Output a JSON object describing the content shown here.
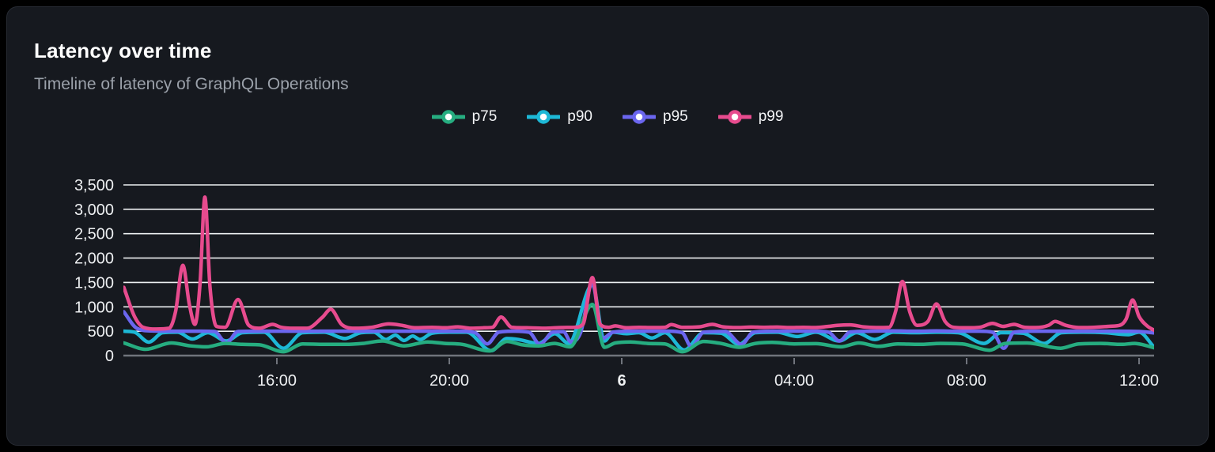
{
  "card": {
    "title": "Latency over time",
    "subtitle": "Timeline of latency of GraphQL Operations"
  },
  "theme": {
    "background": "#000000",
    "card_background": "#16191f",
    "card_border": "#272b33",
    "title_color": "#ffffff",
    "subtitle_color": "#9ba1aa",
    "grid_color": "#eceff1",
    "axis_color": "#70747c",
    "axis_text_color": "#eef0f2"
  },
  "chart_data": {
    "type": "line",
    "title": "Latency over time",
    "subtitle": "Timeline of latency of GraphQL Operations",
    "xlabel": "",
    "ylabel": "",
    "legend_position": "top-center",
    "grid": true,
    "x": {
      "unit": "hours-from-day5-midnight",
      "range": [
        12.45,
        36.35
      ],
      "ticks": [
        {
          "t": 16,
          "label": "16:00",
          "bold": false
        },
        {
          "t": 20,
          "label": "20:00",
          "bold": false
        },
        {
          "t": 24,
          "label": "6",
          "bold": true
        },
        {
          "t": 28,
          "label": "04:00",
          "bold": false
        },
        {
          "t": 32,
          "label": "08:00",
          "bold": false
        },
        {
          "t": 36,
          "label": "12:00",
          "bold": false
        }
      ]
    },
    "y": {
      "range": [
        0,
        3500
      ],
      "tick_step": 500,
      "ticks": [
        {
          "v": 0,
          "label": "0"
        },
        {
          "v": 500,
          "label": "500"
        },
        {
          "v": 1000,
          "label": "1,000"
        },
        {
          "v": 1500,
          "label": "1,500"
        },
        {
          "v": 2000,
          "label": "2,000"
        },
        {
          "v": 2500,
          "label": "2,500"
        },
        {
          "v": 3000,
          "label": "3,000"
        },
        {
          "v": 3500,
          "label": "3,500"
        }
      ]
    },
    "draw_order": [
      "p90",
      "p95",
      "p75",
      "p99"
    ],
    "series": [
      {
        "name": "p75",
        "color": "#26ad80",
        "points": [
          [
            12.45,
            260
          ],
          [
            12.96,
            130
          ],
          [
            13.55,
            260
          ],
          [
            14.0,
            200
          ],
          [
            14.37,
            180
          ],
          [
            14.8,
            250
          ],
          [
            15.2,
            230
          ],
          [
            15.6,
            220
          ],
          [
            16.15,
            80
          ],
          [
            16.6,
            240
          ],
          [
            17.1,
            230
          ],
          [
            17.6,
            230
          ],
          [
            18.0,
            250
          ],
          [
            18.45,
            300
          ],
          [
            18.95,
            200
          ],
          [
            19.5,
            280
          ],
          [
            19.9,
            250
          ],
          [
            20.3,
            230
          ],
          [
            20.93,
            95
          ],
          [
            21.34,
            290
          ],
          [
            21.7,
            220
          ],
          [
            22.07,
            200
          ],
          [
            22.44,
            250
          ],
          [
            22.8,
            180
          ],
          [
            23.32,
            1050
          ],
          [
            23.6,
            170
          ],
          [
            23.85,
            260
          ],
          [
            24.2,
            280
          ],
          [
            24.6,
            250
          ],
          [
            25.0,
            240
          ],
          [
            25.41,
            80
          ],
          [
            25.9,
            290
          ],
          [
            26.3,
            250
          ],
          [
            26.72,
            170
          ],
          [
            27.1,
            250
          ],
          [
            27.49,
            270
          ],
          [
            28.0,
            240
          ],
          [
            28.5,
            245
          ],
          [
            29.08,
            180
          ],
          [
            29.5,
            260
          ],
          [
            29.96,
            190
          ],
          [
            30.4,
            240
          ],
          [
            30.9,
            230
          ],
          [
            31.4,
            250
          ],
          [
            31.9,
            240
          ],
          [
            32.53,
            110
          ],
          [
            32.9,
            250
          ],
          [
            33.4,
            260
          ],
          [
            34.18,
            150
          ],
          [
            34.6,
            240
          ],
          [
            35.1,
            250
          ],
          [
            35.6,
            230
          ],
          [
            35.9,
            250
          ],
          [
            36.1,
            220
          ],
          [
            36.35,
            160
          ]
        ]
      },
      {
        "name": "p90",
        "color": "#1db8d6",
        "points": [
          [
            12.45,
            500
          ],
          [
            12.7,
            480
          ],
          [
            13.03,
            275
          ],
          [
            13.35,
            470
          ],
          [
            13.7,
            480
          ],
          [
            14.04,
            340
          ],
          [
            14.4,
            470
          ],
          [
            14.83,
            300
          ],
          [
            15.2,
            470
          ],
          [
            15.7,
            480
          ],
          [
            16.15,
            150
          ],
          [
            16.6,
            470
          ],
          [
            17.1,
            480
          ],
          [
            17.58,
            350
          ],
          [
            17.95,
            470
          ],
          [
            18.25,
            480
          ],
          [
            18.53,
            330
          ],
          [
            18.75,
            420
          ],
          [
            18.95,
            310
          ],
          [
            19.15,
            400
          ],
          [
            19.32,
            330
          ],
          [
            19.6,
            460
          ],
          [
            20.0,
            480
          ],
          [
            20.4,
            480
          ],
          [
            20.97,
            100
          ],
          [
            21.34,
            350
          ],
          [
            21.6,
            330
          ],
          [
            22.07,
            250
          ],
          [
            22.45,
            450
          ],
          [
            22.77,
            250
          ],
          [
            23.32,
            1450
          ],
          [
            23.6,
            300
          ],
          [
            23.8,
            480
          ],
          [
            24.1,
            450
          ],
          [
            24.4,
            470
          ],
          [
            24.7,
            360
          ],
          [
            25.0,
            470
          ],
          [
            25.45,
            115
          ],
          [
            25.9,
            470
          ],
          [
            26.3,
            460
          ],
          [
            26.72,
            230
          ],
          [
            27.1,
            470
          ],
          [
            27.6,
            480
          ],
          [
            28.07,
            390
          ],
          [
            28.5,
            480
          ],
          [
            29.04,
            300
          ],
          [
            29.45,
            470
          ],
          [
            29.87,
            330
          ],
          [
            30.3,
            480
          ],
          [
            30.8,
            470
          ],
          [
            31.3,
            480
          ],
          [
            31.8,
            470
          ],
          [
            32.4,
            250
          ],
          [
            32.8,
            470
          ],
          [
            33.3,
            460
          ],
          [
            33.8,
            250
          ],
          [
            34.2,
            470
          ],
          [
            34.7,
            480
          ],
          [
            35.2,
            470
          ],
          [
            35.74,
            430
          ],
          [
            36.0,
            480
          ],
          [
            36.35,
            170
          ]
        ]
      },
      {
        "name": "p95",
        "color": "#6b66ef",
        "points": [
          [
            12.45,
            900
          ],
          [
            12.75,
            560
          ],
          [
            13.1,
            505
          ],
          [
            13.6,
            500
          ],
          [
            14.1,
            500
          ],
          [
            14.55,
            495
          ],
          [
            14.83,
            260
          ],
          [
            15.1,
            495
          ],
          [
            15.6,
            500
          ],
          [
            16.2,
            500
          ],
          [
            16.8,
            500
          ],
          [
            17.4,
            500
          ],
          [
            18.0,
            500
          ],
          [
            18.6,
            500
          ],
          [
            19.2,
            500
          ],
          [
            19.8,
            500
          ],
          [
            20.3,
            500
          ],
          [
            20.6,
            470
          ],
          [
            20.88,
            240
          ],
          [
            21.15,
            480
          ],
          [
            21.5,
            500
          ],
          [
            21.85,
            480
          ],
          [
            22.1,
            230
          ],
          [
            22.4,
            480
          ],
          [
            22.65,
            490
          ],
          [
            22.82,
            280
          ],
          [
            23.05,
            480
          ],
          [
            23.32,
            1500
          ],
          [
            23.55,
            350
          ],
          [
            23.8,
            480
          ],
          [
            24.2,
            500
          ],
          [
            24.7,
            500
          ],
          [
            25.1,
            500
          ],
          [
            25.4,
            470
          ],
          [
            25.62,
            175
          ],
          [
            25.9,
            480
          ],
          [
            26.4,
            495
          ],
          [
            26.78,
            230
          ],
          [
            27.05,
            480
          ],
          [
            27.5,
            500
          ],
          [
            28.0,
            500
          ],
          [
            28.5,
            500
          ],
          [
            28.8,
            480
          ],
          [
            29.05,
            300
          ],
          [
            29.3,
            485
          ],
          [
            29.8,
            500
          ],
          [
            30.3,
            505
          ],
          [
            30.8,
            500
          ],
          [
            31.3,
            505
          ],
          [
            31.8,
            500
          ],
          [
            32.3,
            500
          ],
          [
            32.6,
            480
          ],
          [
            32.86,
            150
          ],
          [
            33.1,
            480
          ],
          [
            33.5,
            500
          ],
          [
            34.0,
            500
          ],
          [
            34.5,
            500
          ],
          [
            35.0,
            500
          ],
          [
            35.5,
            500
          ],
          [
            36.0,
            495
          ],
          [
            36.35,
            465
          ]
        ]
      },
      {
        "name": "p99",
        "color": "#e74b8e",
        "points": [
          [
            12.45,
            1400
          ],
          [
            12.7,
            800
          ],
          [
            12.9,
            580
          ],
          [
            13.2,
            545
          ],
          [
            13.5,
            560
          ],
          [
            13.65,
            900
          ],
          [
            13.82,
            1850
          ],
          [
            13.97,
            1050
          ],
          [
            14.1,
            640
          ],
          [
            14.22,
            1500
          ],
          [
            14.33,
            3250
          ],
          [
            14.45,
            1400
          ],
          [
            14.6,
            600
          ],
          [
            14.8,
            580
          ],
          [
            15.1,
            1150
          ],
          [
            15.35,
            620
          ],
          [
            15.6,
            560
          ],
          [
            15.9,
            640
          ],
          [
            16.1,
            580
          ],
          [
            16.4,
            560
          ],
          [
            16.7,
            560
          ],
          [
            17.05,
            780
          ],
          [
            17.25,
            950
          ],
          [
            17.5,
            640
          ],
          [
            17.8,
            560
          ],
          [
            18.2,
            580
          ],
          [
            18.6,
            650
          ],
          [
            18.9,
            620
          ],
          [
            19.2,
            570
          ],
          [
            19.6,
            580
          ],
          [
            19.9,
            570
          ],
          [
            20.2,
            590
          ],
          [
            20.5,
            560
          ],
          [
            20.8,
            570
          ],
          [
            21.0,
            580
          ],
          [
            21.2,
            790
          ],
          [
            21.45,
            580
          ],
          [
            21.8,
            570
          ],
          [
            22.2,
            560
          ],
          [
            22.6,
            575
          ],
          [
            22.9,
            580
          ],
          [
            23.1,
            640
          ],
          [
            23.32,
            1600
          ],
          [
            23.5,
            640
          ],
          [
            23.7,
            580
          ],
          [
            23.85,
            610
          ],
          [
            24.1,
            570
          ],
          [
            24.4,
            580
          ],
          [
            24.7,
            575
          ],
          [
            25.0,
            580
          ],
          [
            25.15,
            635
          ],
          [
            25.4,
            580
          ],
          [
            25.8,
            590
          ],
          [
            26.1,
            640
          ],
          [
            26.35,
            590
          ],
          [
            26.7,
            575
          ],
          [
            27.0,
            585
          ],
          [
            27.3,
            580
          ],
          [
            27.6,
            585
          ],
          [
            27.9,
            575
          ],
          [
            28.2,
            580
          ],
          [
            28.5,
            575
          ],
          [
            28.8,
            600
          ],
          [
            29.0,
            620
          ],
          [
            29.3,
            630
          ],
          [
            29.6,
            590
          ],
          [
            29.9,
            575
          ],
          [
            30.2,
            580
          ],
          [
            30.35,
            900
          ],
          [
            30.51,
            1520
          ],
          [
            30.68,
            900
          ],
          [
            30.85,
            620
          ],
          [
            31.1,
            700
          ],
          [
            31.3,
            1060
          ],
          [
            31.5,
            700
          ],
          [
            31.7,
            580
          ],
          [
            32.0,
            570
          ],
          [
            32.3,
            580
          ],
          [
            32.6,
            660
          ],
          [
            32.85,
            600
          ],
          [
            33.1,
            640
          ],
          [
            33.35,
            580
          ],
          [
            33.6,
            575
          ],
          [
            33.9,
            620
          ],
          [
            34.05,
            700
          ],
          [
            34.3,
            620
          ],
          [
            34.6,
            575
          ],
          [
            34.95,
            580
          ],
          [
            35.3,
            600
          ],
          [
            35.55,
            620
          ],
          [
            35.7,
            750
          ],
          [
            35.85,
            1140
          ],
          [
            36.0,
            800
          ],
          [
            36.2,
            600
          ],
          [
            36.35,
            520
          ]
        ]
      }
    ]
  }
}
